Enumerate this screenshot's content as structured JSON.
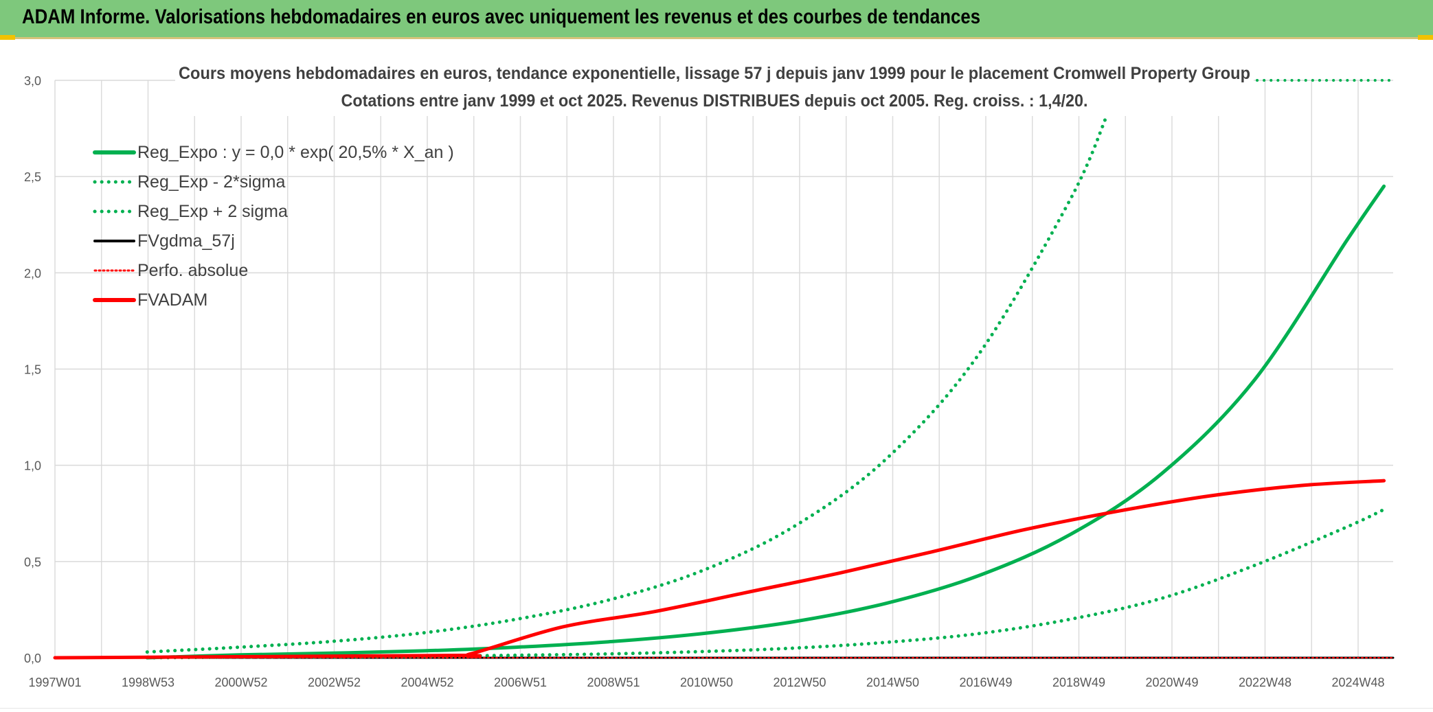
{
  "banner": {
    "title": "ADAM Informe. Valorisations hebdomadaires en euros avec uniquement les revenus et des courbes de tendances"
  },
  "colors": {
    "banner_bg": "#7ec87c",
    "green": "#00b050",
    "red": "#ff0000",
    "black": "#000000",
    "grid": "#d9d9d9"
  },
  "chart_data": {
    "type": "line",
    "title": "Cours moyens hebdomadaires en euros, tendance exponentielle, lissage 57 j depuis janv 1999 pour le placement Cromwell Property Group",
    "subtitle": "Cotations entre janv 1999 et oct 2025. Revenus DISTRIBUES depuis oct 2005. Reg. croiss. : 1,4/20.",
    "x_ticks": [
      "1997W01",
      "1998W53",
      "2000W52",
      "2002W52",
      "2004W52",
      "2006W51",
      "2008W51",
      "2010W50",
      "2012W50",
      "2014W50",
      "2016W49",
      "2018W49",
      "2020W49",
      "2022W48",
      "2024W48"
    ],
    "y_ticks": [
      "0,0",
      "0,5",
      "1,0",
      "1,5",
      "2,0",
      "2,5",
      "3,0"
    ],
    "ylim": [
      0,
      3.0
    ],
    "xlim": [
      1997.0,
      2026.0
    ],
    "grid": "on",
    "legend_placement": "top-left",
    "legend": [
      {
        "label": "Reg_Expo : y = 0,0 * exp( 20,5% *  X_an )",
        "style": "solid",
        "color": "#00b050",
        "width": "thick"
      },
      {
        "label": "Reg_Exp - 2*sigma",
        "style": "dotted",
        "color": "#00b050",
        "width": "medium"
      },
      {
        "label": "Reg_Exp + 2 sigma",
        "style": "dotted",
        "color": "#00b050",
        "width": "medium"
      },
      {
        "label": "FVgdma_57j",
        "style": "solid",
        "color": "#000000",
        "width": "medium"
      },
      {
        "label": "Perfo. absolue",
        "style": "dotted",
        "color": "#ff0000",
        "width": "thin"
      },
      {
        "label": "FVADAM",
        "style": "solid",
        "color": "#ff0000",
        "width": "thick"
      }
    ],
    "series": [
      {
        "name": "Reg_Expo : y = 0,0 * exp( 20,5% *  X_an )",
        "style": "solid",
        "color": "#00b050",
        "x": [
          1999.0,
          2001.0,
          2003.0,
          2005.0,
          2007.0,
          2009.0,
          2011.0,
          2013.0,
          2015.0,
          2017.0,
          2019.0,
          2021.0,
          2023.0,
          2025.0,
          2025.8
        ],
        "y": [
          0.0,
          0.015,
          0.024,
          0.036,
          0.055,
          0.083,
          0.125,
          0.187,
          0.282,
          0.425,
          0.64,
          0.96,
          1.445,
          2.17,
          2.45
        ]
      },
      {
        "name": "Reg_Exp - 2*sigma",
        "style": "dotted",
        "color": "#00b050",
        "x": [
          1999.0,
          2001.0,
          2003.0,
          2005.0,
          2007.0,
          2009.0,
          2011.0,
          2013.0,
          2015.0,
          2017.0,
          2019.0,
          2021.0,
          2023.0,
          2025.0,
          2025.8
        ],
        "y": [
          0.0,
          0.003,
          0.005,
          0.008,
          0.013,
          0.02,
          0.032,
          0.05,
          0.08,
          0.125,
          0.2,
          0.31,
          0.48,
          0.68,
          0.77
        ]
      },
      {
        "name": "Reg_Exp + 2 sigma",
        "style": "dotted",
        "color": "#00b050",
        "x": [
          1999.0,
          2001.0,
          2003.0,
          2005.0,
          2007.0,
          2009.0,
          2011.0,
          2013.0,
          2015.0,
          2017.0,
          2019.0,
          2019.8
        ],
        "y": [
          0.03,
          0.055,
          0.085,
          0.13,
          0.2,
          0.3,
          0.45,
          0.68,
          1.03,
          1.57,
          2.38,
          2.82
        ]
      },
      {
        "name": "FVgdma_57j",
        "style": "solid",
        "color": "#000000",
        "x": [
          1997.0,
          2026.0
        ],
        "y": [
          0.0,
          0.0
        ]
      },
      {
        "name": "Perfo. absolue",
        "style": "dotted",
        "color": "#ff0000",
        "x": [
          1997.0,
          2026.0
        ],
        "y": [
          0.0,
          0.0
        ]
      },
      {
        "name": "FVADAM",
        "style": "solid",
        "color": "#ff0000",
        "x": [
          1997.0,
          2005.5,
          2006.0,
          2008.0,
          2010.0,
          2012.0,
          2014.0,
          2016.0,
          2018.0,
          2020.0,
          2022.0,
          2024.0,
          2025.8
        ],
        "y": [
          0.0,
          0.012,
          0.02,
          0.16,
          0.24,
          0.34,
          0.44,
          0.55,
          0.665,
          0.76,
          0.84,
          0.895,
          0.92
        ]
      }
    ]
  }
}
